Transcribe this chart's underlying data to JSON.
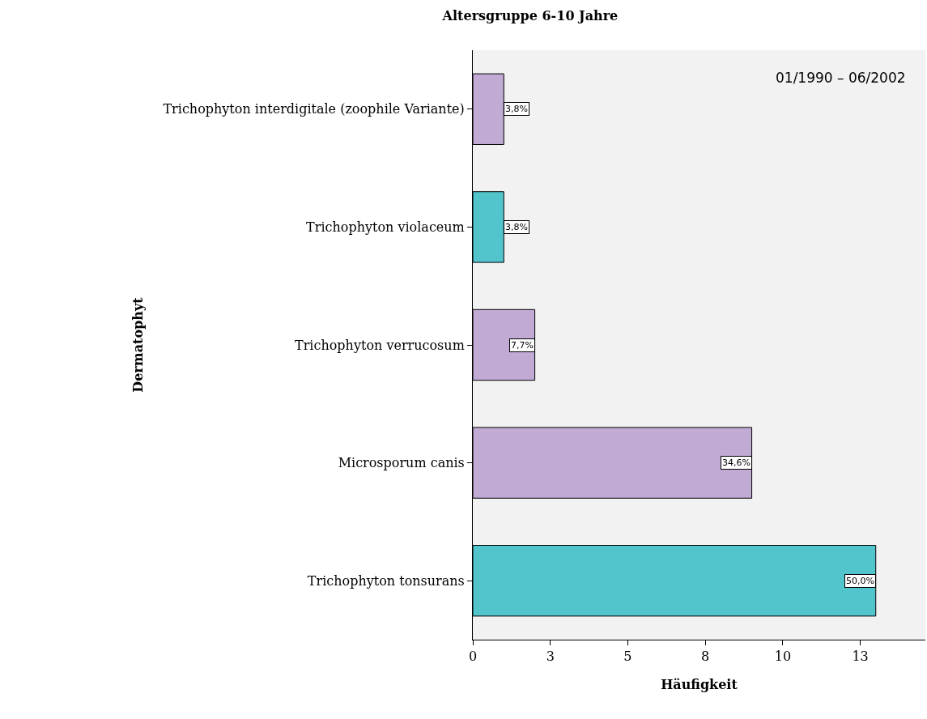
{
  "chart_data": {
    "type": "bar",
    "orientation": "horizontal",
    "title": "Altersgruppe 6-10 Jahre",
    "xlabel": "Häufigkeit",
    "ylabel": "Dermatophyt",
    "categories": [
      "Trichophyton interdigitale (zoophile Variante)",
      "Trichophyton violaceum",
      "Trichophyton verrucosum",
      "Microsporum canis",
      "Trichophyton tonsurans"
    ],
    "values": [
      1,
      1,
      2,
      9,
      13
    ],
    "colors": [
      "#c1aad3",
      "#52c5cc",
      "#c1aad3",
      "#c1aad3",
      "#52c5cc"
    ],
    "xlim": [
      0,
      14.6
    ],
    "xticks": [
      0,
      {
        "value": 2.5,
        "label": "3"
      },
      5,
      {
        "value": 7.5,
        "label": "8"
      },
      10,
      {
        "value": 12.5,
        "label": "13"
      }
    ],
    "annotations": [
      "01/1990 – 06/2002",
      {
        "text": "3,8%",
        "x": 1,
        "y": "Trichophyton interdigitale (zoophile Variante)"
      },
      {
        "text": "3,8%",
        "x": 1,
        "y": "Trichophyton violaceum"
      },
      {
        "text": "7,7%",
        "x": 2,
        "y": "Trichophyton verrucosum"
      },
      {
        "text": "34,6%",
        "x": 9,
        "y": "Microsporum canis"
      },
      {
        "text": "50,0%",
        "x": 13,
        "y": "Trichophyton tonsurans"
      }
    ],
    "grid": false
  }
}
